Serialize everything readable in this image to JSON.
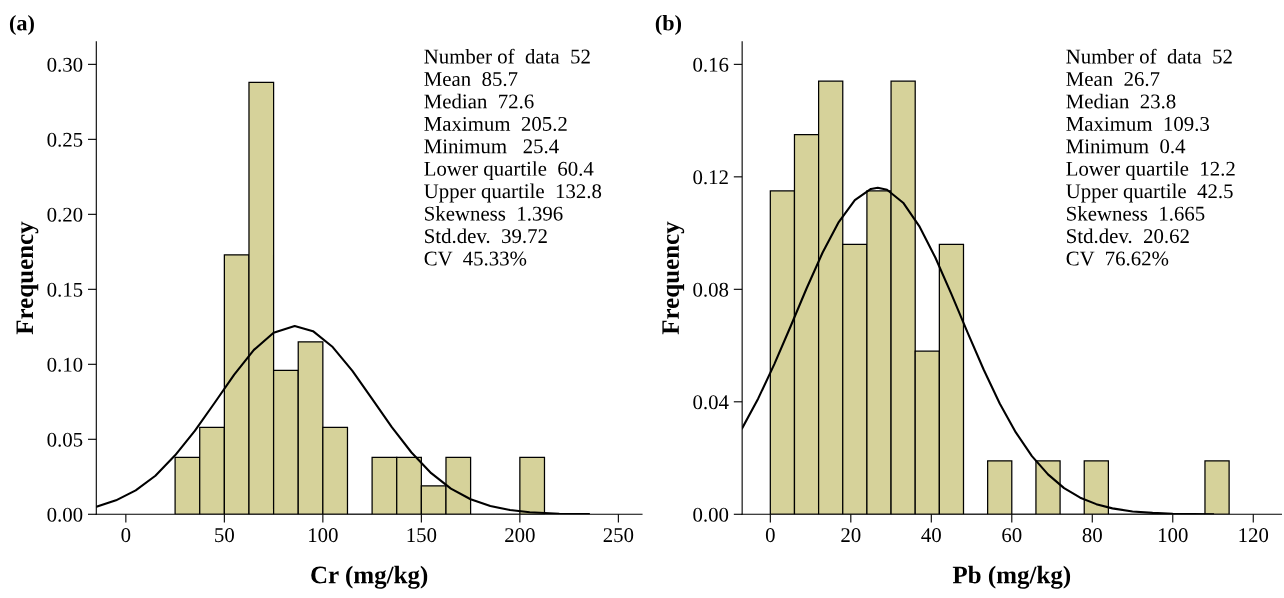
{
  "chart_data": [
    {
      "type": "histogram",
      "title": "(a)",
      "xlabel": "Cr (mg/kg)",
      "ylabel": "Frequency",
      "color": "#d6d29a",
      "bins": [
        25,
        37.5,
        50,
        62.5,
        75,
        87.5,
        100,
        112.5,
        125,
        137.5,
        150,
        162.5,
        175,
        187.5,
        200,
        212.5
      ],
      "values": [
        0.038,
        0.058,
        0.173,
        0.288,
        0.096,
        0.115,
        0.058,
        0,
        0.038,
        0.038,
        0.019,
        0.038,
        0,
        0,
        0.038
      ],
      "series": [
        {
          "type": "line",
          "color": "#000000",
          "x": [
            -15,
            -5,
            5,
            15,
            25,
            35,
            45,
            55,
            65,
            75,
            85.7,
            95,
            105,
            115,
            125,
            135,
            145,
            155,
            165,
            175,
            185,
            195,
            205,
            220,
            235
          ],
          "values": [
            0.005,
            0.0093,
            0.0159,
            0.0257,
            0.0393,
            0.0556,
            0.0742,
            0.0931,
            0.1096,
            0.121,
            0.1255,
            0.1221,
            0.1115,
            0.0956,
            0.0769,
            0.0581,
            0.0412,
            0.0274,
            0.0171,
            0.01,
            0.0055,
            0.0028,
            0.0014,
            0.0004,
            0.0001
          ]
        }
      ],
      "xlim": [
        -15,
        262
      ],
      "xticks": [
        0,
        50,
        100,
        150,
        200,
        250
      ],
      "ylim": [
        0,
        0.315
      ],
      "yticks": [
        {
          "value": 0,
          "label": "0.00"
        },
        {
          "value": 0.05,
          "label": "0.05"
        },
        {
          "value": 0.1,
          "label": "0.10"
        },
        {
          "value": 0.15,
          "label": "0.15"
        },
        {
          "value": 0.2,
          "label": "0.20"
        },
        {
          "value": 0.25,
          "label": "0.25"
        },
        {
          "value": 0.3,
          "label": "0.30"
        }
      ],
      "grid": false,
      "legend": false,
      "annotations": [
        "Number of  data  52",
        "Mean  85.7",
        "Median  72.6",
        "Maximum  205.2",
        "Minimum   25.4",
        "Lower quartile  60.4",
        "Upper quartile  132.8",
        "Skewness  1.396",
        "Std.dev.  39.72",
        "CV  45.33%"
      ]
    },
    {
      "type": "histogram",
      "title": "(b)",
      "xlabel": "Pb (mg/kg)",
      "ylabel": "Frequency",
      "color": "#d6d29a",
      "bins": [
        0,
        6,
        12,
        18,
        24,
        30,
        36,
        42,
        48,
        54,
        60,
        66,
        72,
        78,
        84,
        90,
        96,
        102,
        108,
        114
      ],
      "values": [
        0.115,
        0.135,
        0.154,
        0.096,
        0.115,
        0.154,
        0.058,
        0.096,
        0,
        0.019,
        0,
        0.019,
        0,
        0.019,
        0,
        0,
        0,
        0,
        0.019
      ],
      "series": [
        {
          "type": "line",
          "color": "#000000",
          "x": [
            -7,
            -3,
            1,
            5,
            9,
            13,
            17,
            21,
            25,
            26.7,
            29,
            33,
            37,
            41,
            45,
            49,
            53,
            57,
            61,
            65,
            69,
            73,
            77,
            81,
            85,
            90,
            95,
            100,
            110
          ],
          "values": [
            0.0306,
            0.0412,
            0.0534,
            0.0667,
            0.0803,
            0.0931,
            0.1039,
            0.1117,
            0.1157,
            0.1161,
            0.1154,
            0.1108,
            0.1025,
            0.0913,
            0.0783,
            0.0647,
            0.0515,
            0.0394,
            0.0291,
            0.0207,
            0.0142,
            0.0093,
            0.0059,
            0.0036,
            0.0021,
            0.001,
            0.0005,
            0.0002,
            0
          ]
        }
      ],
      "xlim": [
        -7,
        127
      ],
      "xticks": [
        0,
        20,
        40,
        60,
        80,
        100,
        120
      ],
      "ylim": [
        0,
        0.168
      ],
      "yticks": [
        {
          "value": 0,
          "label": "0.00"
        },
        {
          "value": 0.04,
          "label": "0.04"
        },
        {
          "value": 0.08,
          "label": "0.08"
        },
        {
          "value": 0.12,
          "label": "0.12"
        },
        {
          "value": 0.16,
          "label": "0.16"
        }
      ],
      "grid": false,
      "legend": false,
      "annotations": [
        "Number of  data  52",
        "Mean  26.7",
        "Median  23.8",
        "Maximum  109.3",
        "Minimum  0.4",
        "Lower quartile  12.2",
        "Upper quartile  42.5",
        "Skewness  1.665",
        "Std.dev.  20.62",
        "CV  76.62%"
      ]
    }
  ]
}
